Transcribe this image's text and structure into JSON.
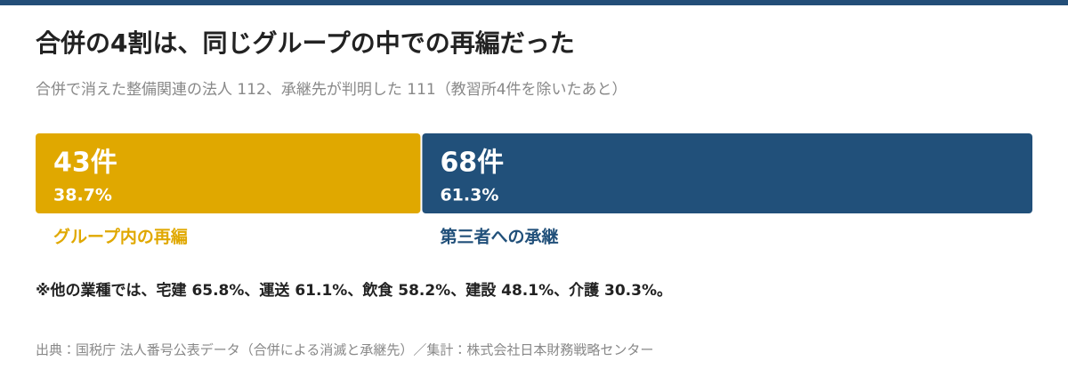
{
  "chart_data": {
    "type": "stacked-bar",
    "title": "合併の4割は、同じグループの中での再編だった",
    "subtitle": "合併で消えた整備関連の法人 112、承継先が判明した 111（教習所4件を除いたあと）",
    "series": [
      {
        "name": "グループ内の再編",
        "color": "#e0a800",
        "values": [
          43
        ],
        "value_labels": [
          "43件"
        ],
        "shares": [
          38.7
        ],
        "share_labels": [
          "38.7%"
        ]
      },
      {
        "name": "第三者への承継",
        "color": "#21507a",
        "values": [
          68
        ],
        "value_labels": [
          "68件"
        ],
        "shares": [
          61.3
        ],
        "share_labels": [
          "61.3%"
        ]
      }
    ],
    "note": "※他の業種では、宅建 65.8%、運送 61.1%、飲食 58.2%、建設 48.1%、介護 30.3%。",
    "source": "出典：国税庁 法人番号公表データ（合併による消滅と承継先）／集計：株式会社日本財務戦略センター"
  }
}
